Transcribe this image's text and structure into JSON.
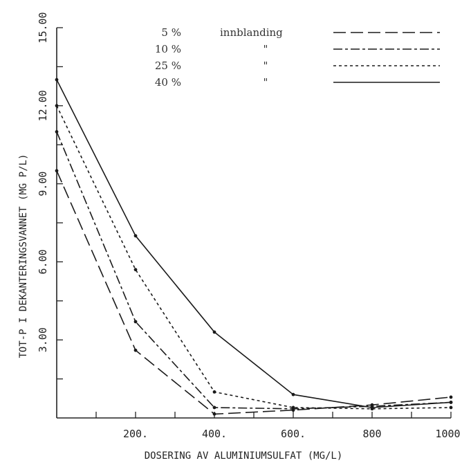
{
  "chart_data": {
    "type": "line",
    "xlabel": "DOSERING AV ALUMINIUMSULFAT  (MG/L)",
    "ylabel": "TOT-P I DEKANTERINGSVANNET  (MG P/L)",
    "xlim": [
      0,
      1000
    ],
    "ylim": [
      0,
      15
    ],
    "xticks": [
      100,
      200,
      300,
      400,
      500,
      600,
      700,
      800,
      900,
      1000
    ],
    "xtick_labels": [
      {
        "value": 200,
        "label": "200."
      },
      {
        "value": 400,
        "label": "400."
      },
      {
        "value": 600,
        "label": "600."
      },
      {
        "value": 800,
        "label": "800"
      },
      {
        "value": 1000,
        "label": "1000."
      }
    ],
    "yticks": [
      1.5,
      3,
      4.5,
      6,
      7.5,
      9,
      10.5,
      12,
      13.5,
      15
    ],
    "ytick_labels": [
      {
        "value": 3,
        "label": "3.00"
      },
      {
        "value": 6,
        "label": "6.00"
      },
      {
        "value": 9,
        "label": "9.00"
      },
      {
        "value": 12,
        "label": "12.00"
      },
      {
        "value": 15,
        "label": "15.00"
      }
    ],
    "grid": false,
    "legend_position": "top-right",
    "x": [
      0,
      200,
      400,
      600,
      800,
      1000
    ],
    "series": [
      {
        "legend": "5 %",
        "text": "innblanding",
        "dash": "long-dash",
        "values": [
          9.5,
          2.6,
          0.15,
          0.3,
          0.5,
          0.8
        ]
      },
      {
        "legend": "10 %",
        "text": "\"",
        "dash": "dash-dot",
        "values": [
          11.0,
          3.7,
          0.4,
          0.35,
          0.45,
          0.6
        ]
      },
      {
        "legend": "25 %",
        "text": "\"",
        "dash": "short-dash",
        "values": [
          12.0,
          5.7,
          1.0,
          0.4,
          0.35,
          0.4
        ]
      },
      {
        "legend": "40 %",
        "text": "\"",
        "dash": "solid",
        "values": [
          13.0,
          7.0,
          3.3,
          0.9,
          0.4,
          0.6
        ]
      }
    ]
  }
}
